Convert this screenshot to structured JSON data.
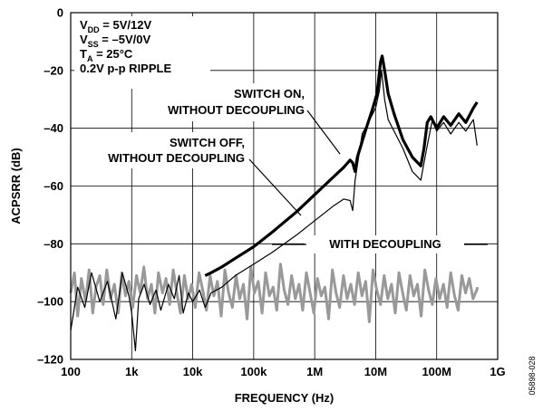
{
  "chart_data": {
    "type": "line",
    "xlabel": "FREQUENCY (Hz)",
    "ylabel": "ACPSRR (dB)",
    "x_scale": "log",
    "xlim": [
      100,
      1000000000
    ],
    "ylim": [
      -120,
      0
    ],
    "grid": true,
    "x_ticks": [
      {
        "value": 100,
        "label": "100"
      },
      {
        "value": 1000,
        "label": "1k"
      },
      {
        "value": 10000,
        "label": "10k"
      },
      {
        "value": 100000,
        "label": "100k"
      },
      {
        "value": 1000000,
        "label": "1M"
      },
      {
        "value": 10000000,
        "label": "10M"
      },
      {
        "value": 100000000,
        "label": "100M"
      },
      {
        "value": 1000000000,
        "label": "1G"
      }
    ],
    "y_ticks": [
      {
        "value": 0,
        "label": "0"
      },
      {
        "value": -20,
        "label": "–20"
      },
      {
        "value": -40,
        "label": "–40"
      },
      {
        "value": -60,
        "label": "–60"
      },
      {
        "value": -80,
        "label": "–80"
      },
      {
        "value": -100,
        "label": "–100"
      },
      {
        "value": -120,
        "label": "–120"
      }
    ],
    "conditions": [
      {
        "main": "V",
        "sub": "DD",
        "rest": " = 5V/12V"
      },
      {
        "main": "V",
        "sub": "SS",
        "rest": " = –5V/0V"
      },
      {
        "main": "T",
        "sub": "A",
        "rest": " = 25°C"
      },
      {
        "main": "0.2V p-p RIPPLE",
        "sub": "",
        "rest": ""
      }
    ],
    "annotations": [
      {
        "lines": [
          "SWITCH ON,",
          "WITHOUT DECOUPLING"
        ]
      },
      {
        "lines": [
          "SWITCH OFF,",
          "WITHOUT DECOUPLING"
        ]
      },
      {
        "lines": [
          "WITH DECOUPLING"
        ]
      }
    ],
    "series": [
      {
        "color": "#000000",
        "width": 3.2,
        "points": [
          [
            16000,
            -91
          ],
          [
            20000,
            -90
          ],
          [
            30000,
            -88
          ],
          [
            50000,
            -85
          ],
          [
            100000,
            -81
          ],
          [
            200000,
            -76
          ],
          [
            500000,
            -69
          ],
          [
            1000000,
            -63
          ],
          [
            2000000,
            -57
          ],
          [
            3000000,
            -53.5
          ],
          [
            3800000,
            -51
          ],
          [
            4200000,
            -52
          ],
          [
            4600000,
            -55
          ],
          [
            5000000,
            -50
          ],
          [
            7000000,
            -40
          ],
          [
            9000000,
            -33
          ],
          [
            10500000,
            -28
          ],
          [
            12000000,
            -17
          ],
          [
            12800000,
            -15
          ],
          [
            14000000,
            -20
          ],
          [
            16000000,
            -28
          ],
          [
            20000000,
            -35
          ],
          [
            28000000,
            -44
          ],
          [
            40000000,
            -50
          ],
          [
            55000000,
            -53
          ],
          [
            62000000,
            -47
          ],
          [
            70000000,
            -38
          ],
          [
            80000000,
            -36
          ],
          [
            100000000,
            -40
          ],
          [
            130000000,
            -36
          ],
          [
            170000000,
            -39
          ],
          [
            230000000,
            -35
          ],
          [
            300000000,
            -38
          ],
          [
            400000000,
            -33
          ],
          [
            460000000,
            -31
          ]
        ]
      },
      {
        "color": "#000000",
        "width": 1.2,
        "points": [
          [
            100,
            -110
          ],
          [
            130,
            -95
          ],
          [
            170,
            -102
          ],
          [
            220,
            -90
          ],
          [
            300,
            -100
          ],
          [
            400,
            -93
          ],
          [
            550,
            -106
          ],
          [
            700,
            -90
          ],
          [
            900,
            -98
          ],
          [
            1000,
            -104
          ],
          [
            1150,
            -117
          ],
          [
            1300,
            -99
          ],
          [
            1600,
            -94
          ],
          [
            2000,
            -101
          ],
          [
            2500,
            -96
          ],
          [
            3000,
            -103
          ],
          [
            4000,
            -94
          ],
          [
            5000,
            -99
          ],
          [
            6000,
            -91
          ],
          [
            7000,
            -104
          ],
          [
            8500,
            -97
          ],
          [
            10000,
            -100
          ],
          [
            13000,
            -96
          ],
          [
            16000,
            -102
          ],
          [
            20000,
            -97
          ],
          [
            30000,
            -95
          ],
          [
            50000,
            -91
          ],
          [
            100000,
            -87
          ],
          [
            200000,
            -83
          ],
          [
            500000,
            -77
          ],
          [
            1000000,
            -72
          ],
          [
            2000000,
            -67
          ],
          [
            3000000,
            -64.5
          ],
          [
            3800000,
            -65
          ],
          [
            4200000,
            -68.5
          ],
          [
            4600000,
            -58
          ],
          [
            6000000,
            -42
          ],
          [
            8000000,
            -37
          ],
          [
            10000000,
            -33
          ],
          [
            11500000,
            -27
          ],
          [
            12500000,
            -20
          ],
          [
            14000000,
            -30
          ],
          [
            16000000,
            -37
          ],
          [
            20000000,
            -41
          ],
          [
            28000000,
            -47
          ],
          [
            40000000,
            -55
          ],
          [
            55000000,
            -58
          ],
          [
            62000000,
            -52
          ],
          [
            70000000,
            -46
          ],
          [
            85000000,
            -37
          ],
          [
            100000000,
            -41
          ],
          [
            130000000,
            -38
          ],
          [
            170000000,
            -42
          ],
          [
            230000000,
            -38
          ],
          [
            300000000,
            -41
          ],
          [
            400000000,
            -37
          ],
          [
            460000000,
            -46
          ]
        ]
      },
      {
        "color": "#999999",
        "width": 3,
        "points": [
          [
            100,
            -97
          ],
          [
            115,
            -90
          ],
          [
            130,
            -105
          ],
          [
            150,
            -92
          ],
          [
            175,
            -100
          ],
          [
            200,
            -89
          ],
          [
            230,
            -104
          ],
          [
            260,
            -95
          ],
          [
            300,
            -91
          ],
          [
            340,
            -101
          ],
          [
            390,
            -89
          ],
          [
            450,
            -99
          ],
          [
            520,
            -94
          ],
          [
            600,
            -104
          ],
          [
            690,
            -90
          ],
          [
            790,
            -98
          ],
          [
            900,
            -93
          ],
          [
            1040,
            -102
          ],
          [
            1200,
            -91
          ],
          [
            1380,
            -97
          ],
          [
            1580,
            -88
          ],
          [
            1820,
            -99
          ],
          [
            2100,
            -94
          ],
          [
            2400,
            -104
          ],
          [
            2750,
            -90
          ],
          [
            3200,
            -97
          ],
          [
            3650,
            -92
          ],
          [
            4200,
            -101
          ],
          [
            4800,
            -89
          ],
          [
            5500,
            -97
          ],
          [
            6300,
            -104
          ],
          [
            7300,
            -91
          ],
          [
            8400,
            -99
          ],
          [
            9600,
            -94
          ],
          [
            11000,
            -102
          ],
          [
            12700,
            -90
          ],
          [
            14600,
            -96
          ],
          [
            16800,
            -103
          ],
          [
            19300,
            -91
          ],
          [
            22200,
            -98
          ],
          [
            25500,
            -93
          ],
          [
            29300,
            -105
          ],
          [
            33700,
            -89
          ],
          [
            38800,
            -97
          ],
          [
            44600,
            -102
          ],
          [
            51300,
            -91
          ],
          [
            59000,
            -99
          ],
          [
            67800,
            -94
          ],
          [
            78000,
            -106
          ],
          [
            89700,
            -88
          ],
          [
            103000,
            -97
          ],
          [
            119000,
            -93
          ],
          [
            137000,
            -104
          ],
          [
            157000,
            -90
          ],
          [
            181000,
            -98
          ],
          [
            208000,
            -95
          ],
          [
            239000,
            -103
          ],
          [
            275000,
            -87
          ],
          [
            316000,
            -96
          ],
          [
            364000,
            -101
          ],
          [
            418000,
            -91
          ],
          [
            481000,
            -99
          ],
          [
            553000,
            -94
          ],
          [
            636000,
            -103
          ],
          [
            732000,
            -90
          ],
          [
            841000,
            -97
          ],
          [
            968000,
            -104
          ],
          [
            1110000,
            -92
          ],
          [
            1280000,
            -98
          ],
          [
            1470000,
            -95
          ],
          [
            1690000,
            -106
          ],
          [
            1950000,
            -89
          ],
          [
            2240000,
            -97
          ],
          [
            2570000,
            -102
          ],
          [
            2960000,
            -91
          ],
          [
            3400000,
            -99
          ],
          [
            3910000,
            -94
          ],
          [
            4500000,
            -101
          ],
          [
            5180000,
            -90
          ],
          [
            5950000,
            -98
          ],
          [
            6850000,
            -93
          ],
          [
            7870000,
            -107
          ],
          [
            9060000,
            -89
          ],
          [
            10400000,
            -96
          ],
          [
            12000000,
            -101
          ],
          [
            13800000,
            -91
          ],
          [
            15800000,
            -99
          ],
          [
            18200000,
            -94
          ],
          [
            20900000,
            -104
          ],
          [
            24100000,
            -90
          ],
          [
            27700000,
            -97
          ],
          [
            31800000,
            -103
          ],
          [
            36600000,
            -91
          ],
          [
            42100000,
            -98
          ],
          [
            48400000,
            -94
          ],
          [
            55700000,
            -105
          ],
          [
            64000000,
            -89
          ],
          [
            73600000,
            -96
          ],
          [
            84700000,
            -101
          ],
          [
            97400000,
            -92
          ],
          [
            112000000,
            -99
          ],
          [
            129000000,
            -94
          ],
          [
            148000000,
            -102
          ],
          [
            170000000,
            -90
          ],
          [
            196000000,
            -98
          ],
          [
            225000000,
            -103
          ],
          [
            259000000,
            -91
          ],
          [
            298000000,
            -97
          ],
          [
            343000000,
            -92
          ],
          [
            394000000,
            -99
          ],
          [
            453000000,
            -96
          ],
          [
            470000000,
            -95
          ]
        ]
      }
    ]
  },
  "figure_id": "05898-028"
}
